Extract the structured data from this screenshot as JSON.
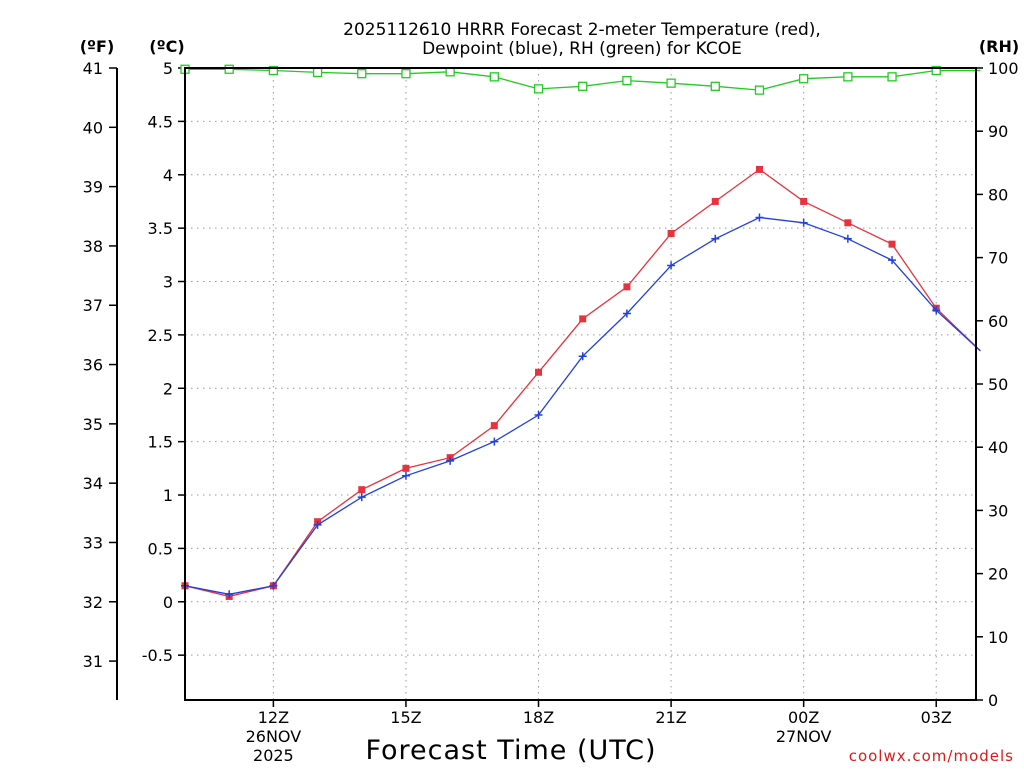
{
  "chart_data": {
    "type": "line",
    "title_line1": "2025112610 HRRR Forecast 2-meter Temperature (red),",
    "title_line2": "Dewpoint (blue), RH (green) for KCOE",
    "xlabel": "Forecast Time (UTC)",
    "left_outer_unit": "(ºF)",
    "left_inner_unit": "(ºC)",
    "right_unit": "(RH)",
    "watermark": "coolwx.com/models",
    "x_hours": [
      10,
      11,
      12,
      13,
      14,
      15,
      16,
      17,
      18,
      19,
      20,
      21,
      22,
      23,
      24,
      25,
      26,
      27,
      28
    ],
    "x_range_hours": [
      10,
      27.9
    ],
    "x_ticks": [
      {
        "hour": 12,
        "label": "12Z",
        "sub1": "26NOV",
        "sub2": "2025"
      },
      {
        "hour": 15,
        "label": "15Z",
        "sub1": "",
        "sub2": ""
      },
      {
        "hour": 18,
        "label": "18Z",
        "sub1": "",
        "sub2": ""
      },
      {
        "hour": 21,
        "label": "21Z",
        "sub1": "",
        "sub2": ""
      },
      {
        "hour": 24,
        "label": "00Z",
        "sub1": "27NOV",
        "sub2": ""
      },
      {
        "hour": 27,
        "label": "03Z",
        "sub1": "",
        "sub2": ""
      }
    ],
    "celsius_range": [
      -0.92,
      5.0
    ],
    "celsius_ticks": [
      "-0.5",
      "0",
      "0.5",
      "1",
      "1.5",
      "2",
      "2.5",
      "3",
      "3.5",
      "4",
      "4.5",
      "5"
    ],
    "fahrenheit_ticks": [
      "31",
      "32",
      "33",
      "34",
      "35",
      "36",
      "37",
      "38",
      "39",
      "40",
      "41"
    ],
    "rh_range": [
      0,
      100
    ],
    "rh_ticks": [
      "0",
      "10",
      "20",
      "30",
      "40",
      "50",
      "60",
      "70",
      "80",
      "90",
      "100"
    ],
    "series": [
      {
        "name": "Temperature",
        "color": "#e8323c",
        "marker": "filled-square",
        "values": [
          0.15,
          0.05,
          0.15,
          0.75,
          1.05,
          1.25,
          1.35,
          1.65,
          2.15,
          2.65,
          2.95,
          3.45,
          3.75,
          4.05,
          3.75,
          3.55,
          3.35,
          2.75,
          2.35
        ]
      },
      {
        "name": "Dewpoint",
        "color": "#2040e0",
        "marker": "plus",
        "values": [
          0.15,
          0.07,
          0.15,
          0.72,
          0.98,
          1.18,
          1.32,
          1.5,
          1.75,
          2.3,
          2.7,
          3.15,
          3.4,
          3.6,
          3.55,
          3.4,
          3.2,
          2.73,
          2.35
        ]
      },
      {
        "name": "RH",
        "color": "#22cc22",
        "marker": "open-square",
        "axis": "rh",
        "values": [
          99.8,
          99.8,
          99.6,
          99.3,
          99.1,
          99.1,
          99.4,
          98.6,
          96.7,
          97.1,
          98.0,
          97.6,
          97.1,
          96.5,
          98.3,
          98.6,
          98.6,
          99.6,
          99.6
        ]
      }
    ]
  }
}
